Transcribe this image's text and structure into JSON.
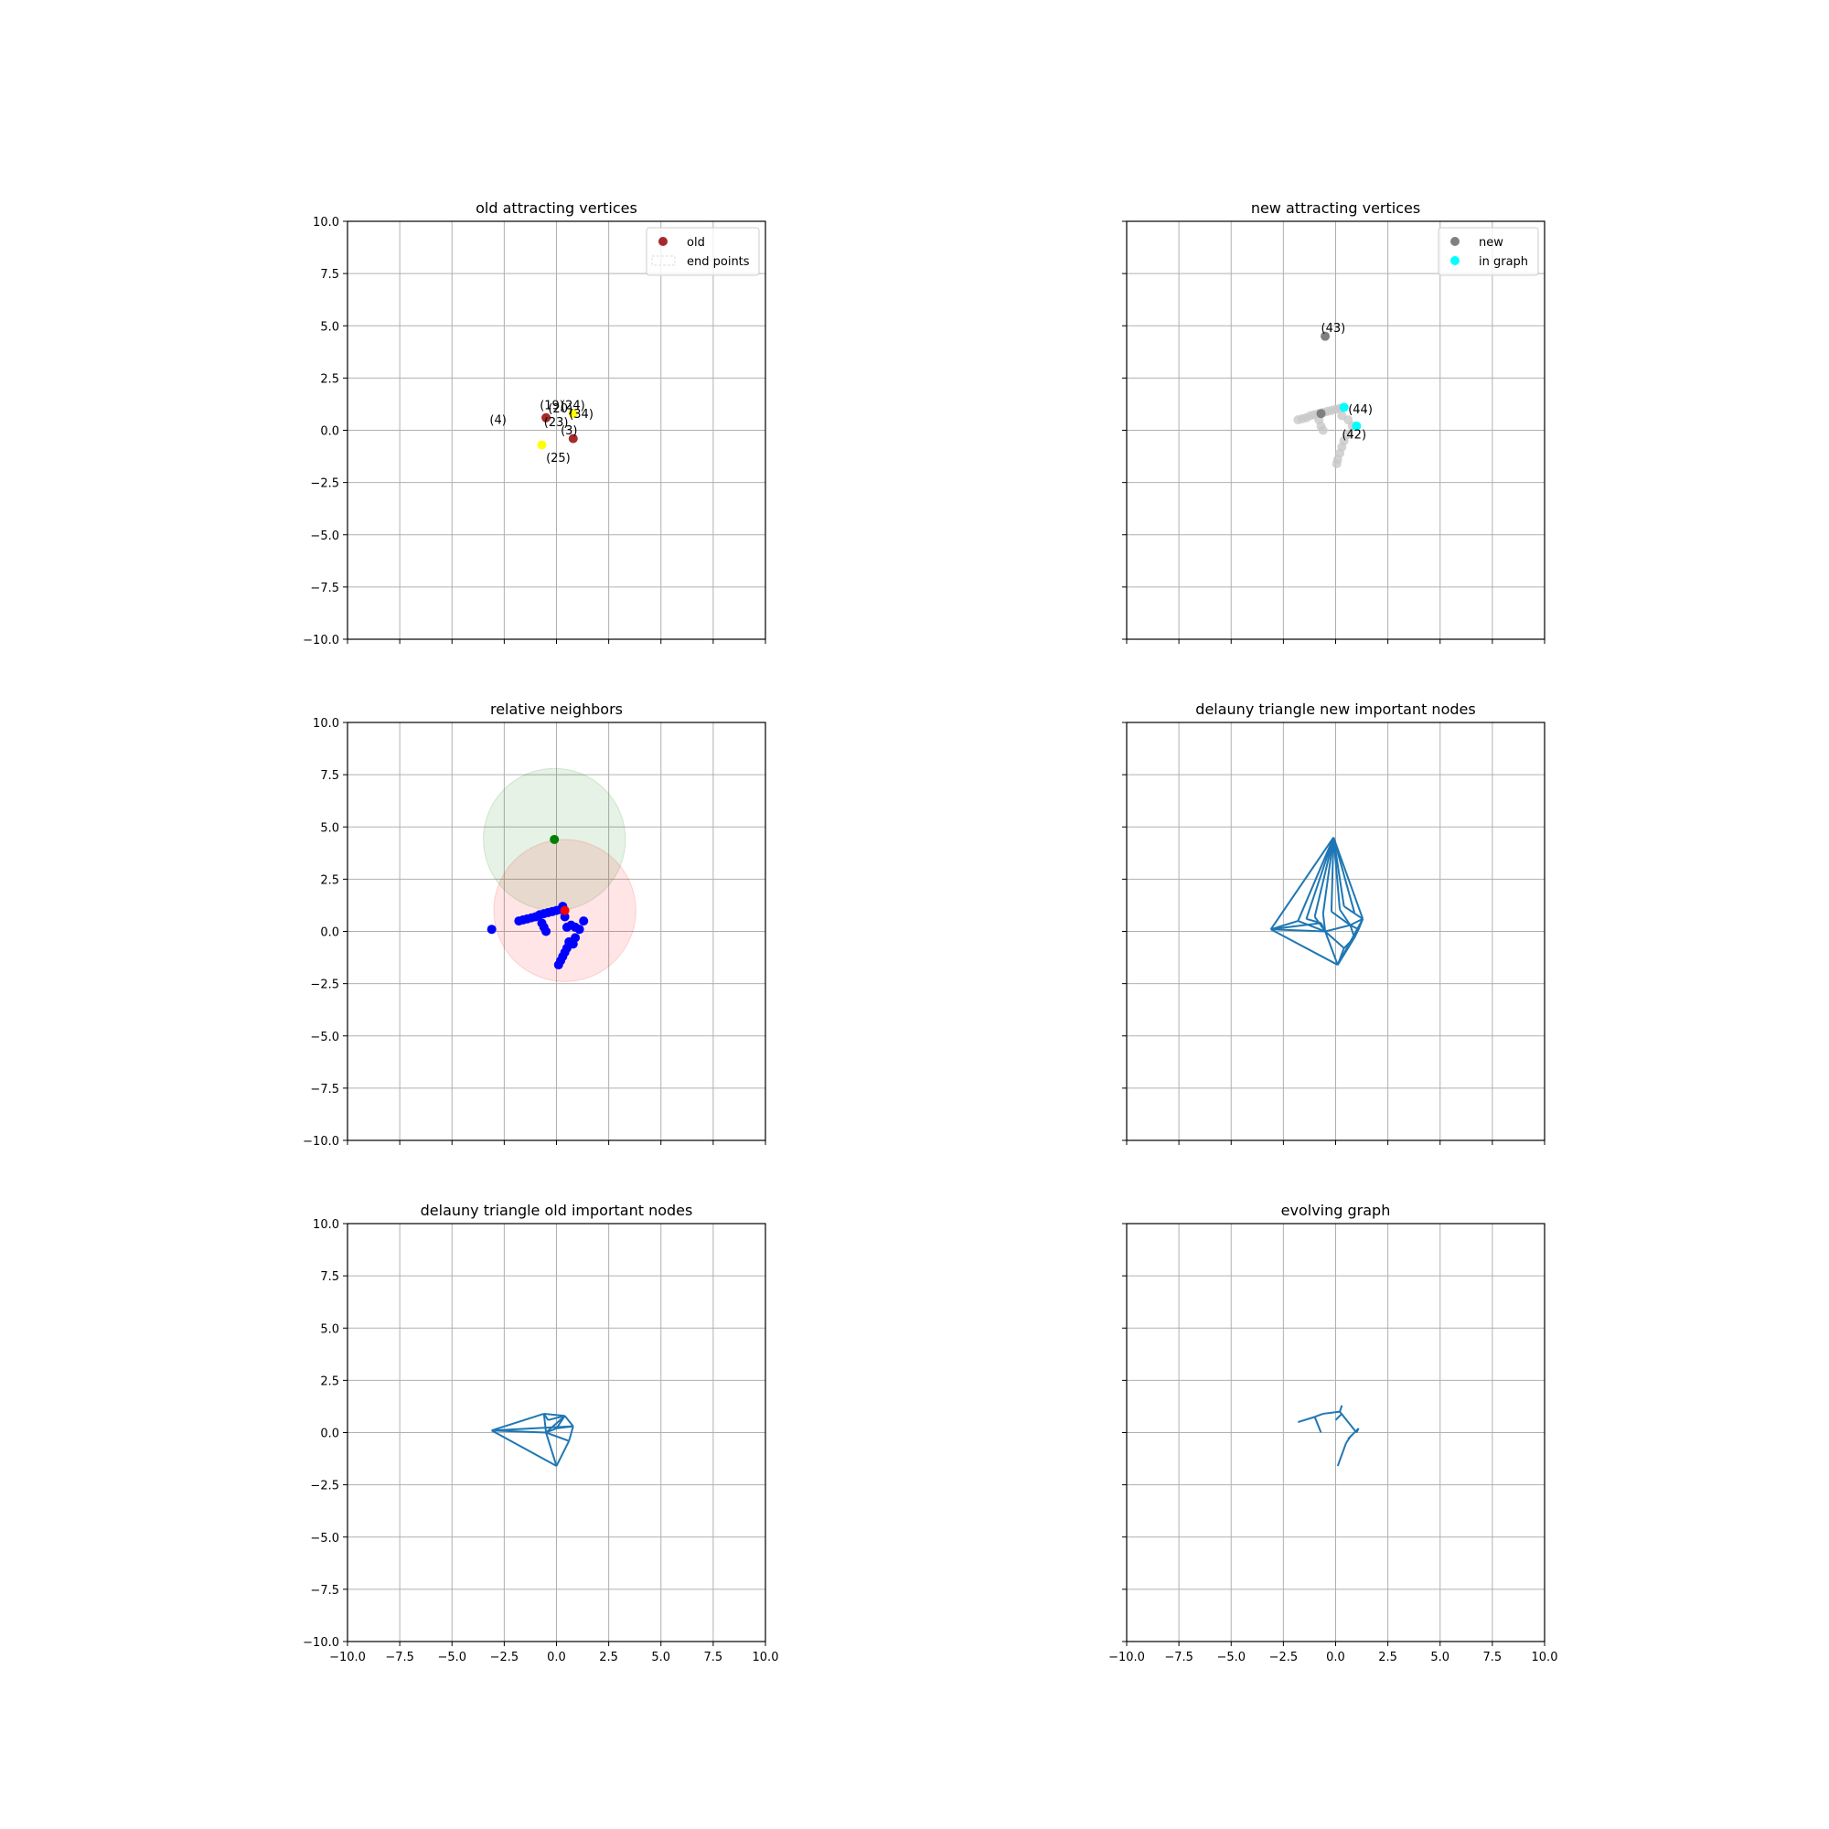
{
  "figure": {
    "background": "#ffffff"
  },
  "chart_data": [
    {
      "id": "old_attracting",
      "type": "scatter",
      "title": "old attracting vertices",
      "xlim": [
        -10,
        10
      ],
      "ylim": [
        -10,
        10
      ],
      "xticks": [
        "−10.0",
        "−7.5",
        "−5.0",
        "−2.5",
        "0.0",
        "2.5",
        "5.0",
        "7.5",
        "10.0"
      ],
      "yticks": [
        "−10.0",
        "−7.5",
        "−5.0",
        "−2.5",
        "0.0",
        "2.5",
        "5.0",
        "7.5",
        "10.0"
      ],
      "show_xticklabels": false,
      "grid": true,
      "legend": {
        "position": "top-right",
        "entries": [
          {
            "label": "old",
            "kind": "dot",
            "color": "#a52a2a"
          },
          {
            "label": "end points",
            "kind": "patch",
            "color": "#dcdcdc"
          }
        ]
      },
      "series": [
        {
          "name": "old",
          "color": "#a52a2a",
          "points": [
            [
              -0.5,
              0.6
            ],
            [
              0.8,
              -0.4
            ]
          ]
        },
        {
          "name": "end points",
          "color": "#ffff00",
          "points": [
            [
              -0.7,
              -0.7
            ],
            [
              0.8,
              0.8
            ]
          ]
        }
      ],
      "annotations": [
        {
          "text": "(4)",
          "x": -3.2,
          "y": 0.3
        },
        {
          "text": "(19)",
          "x": -0.8,
          "y": 1.0
        },
        {
          "text": "(24)",
          "x": 0.2,
          "y": 1.0
        },
        {
          "text": "(20)",
          "x": -0.4,
          "y": 0.85
        },
        {
          "text": "(34)",
          "x": 0.6,
          "y": 0.6
        },
        {
          "text": "(23)",
          "x": -0.6,
          "y": 0.2
        },
        {
          "text": "(3)",
          "x": 0.2,
          "y": -0.2
        },
        {
          "text": "(25)",
          "x": -0.5,
          "y": -1.5
        }
      ]
    },
    {
      "id": "new_attracting",
      "type": "scatter",
      "title": "new attracting vertices",
      "xlim": [
        -10,
        10
      ],
      "ylim": [
        -10,
        10
      ],
      "xticks": [
        "−10.0",
        "−7.5",
        "−5.0",
        "−2.5",
        "0.0",
        "2.5",
        "5.0",
        "7.5",
        "10.0"
      ],
      "yticks": [
        "−10.0",
        "−7.5",
        "−5.0",
        "−2.5",
        "0.0",
        "2.5",
        "5.0",
        "7.5",
        "10.0"
      ],
      "show_xticklabels": false,
      "show_yticklabels": false,
      "grid": true,
      "legend": {
        "position": "top-right",
        "entries": [
          {
            "label": "new",
            "kind": "dot",
            "color": "#808080"
          },
          {
            "label": "in graph",
            "kind": "dot",
            "color": "#00ffff"
          }
        ]
      },
      "series": [
        {
          "name": "trail",
          "color": "#c8c8c8",
          "points": [
            [
              -1.8,
              0.5
            ],
            [
              -1.6,
              0.55
            ],
            [
              -1.4,
              0.6
            ],
            [
              -1.2,
              0.7
            ],
            [
              -1.0,
              0.75
            ],
            [
              -0.8,
              0.8
            ],
            [
              -0.6,
              0.85
            ],
            [
              -0.4,
              0.9
            ],
            [
              -0.2,
              0.95
            ],
            [
              0.0,
              1.0
            ],
            [
              0.2,
              1.05
            ],
            [
              0.3,
              0.7
            ],
            [
              0.6,
              0.5
            ],
            [
              0.8,
              0.2
            ],
            [
              0.6,
              -0.2
            ],
            [
              0.4,
              -0.5
            ],
            [
              0.3,
              -0.8
            ],
            [
              0.2,
              -1.1
            ],
            [
              0.1,
              -1.4
            ],
            [
              0.05,
              -1.6
            ],
            [
              -0.8,
              0.5
            ],
            [
              -0.7,
              0.2
            ],
            [
              -0.6,
              0.0
            ]
          ]
        },
        {
          "name": "new",
          "color": "#808080",
          "points": [
            [
              -0.5,
              4.5
            ],
            [
              -0.7,
              0.8
            ]
          ]
        },
        {
          "name": "in graph",
          "color": "#00ffff",
          "points": [
            [
              0.4,
              1.1
            ],
            [
              1.0,
              0.2
            ]
          ]
        }
      ],
      "annotations": [
        {
          "text": "(43)",
          "x": -0.7,
          "y": 4.7
        },
        {
          "text": "(44)",
          "x": 0.6,
          "y": 0.8
        },
        {
          "text": "(42)",
          "x": 0.3,
          "y": -0.4
        }
      ]
    },
    {
      "id": "relative_neighbors",
      "type": "scatter",
      "title": "relative neighbors",
      "xlim": [
        -10,
        10
      ],
      "ylim": [
        -10,
        10
      ],
      "xticks": [
        "−10.0",
        "−7.5",
        "−5.0",
        "−2.5",
        "0.0",
        "2.5",
        "5.0",
        "7.5",
        "10.0"
      ],
      "yticks": [
        "−10.0",
        "−7.5",
        "−5.0",
        "−2.5",
        "0.0",
        "2.5",
        "5.0",
        "7.5",
        "10.0"
      ],
      "show_xticklabels": false,
      "grid": true,
      "circles": [
        {
          "cx": -0.1,
          "cy": 4.4,
          "r": 3.4,
          "color": "#008000",
          "opacity": 0.1
        },
        {
          "cx": 0.4,
          "cy": 1.0,
          "r": 3.4,
          "color": "#ff0000",
          "opacity": 0.1
        }
      ],
      "series": [
        {
          "name": "nodes",
          "color": "#0000ff",
          "points": [
            [
              -3.1,
              0.1
            ],
            [
              -1.8,
              0.5
            ],
            [
              -1.6,
              0.55
            ],
            [
              -1.4,
              0.6
            ],
            [
              -1.2,
              0.65
            ],
            [
              -1.0,
              0.7
            ],
            [
              -0.8,
              0.8
            ],
            [
              -0.6,
              0.85
            ],
            [
              -0.4,
              0.9
            ],
            [
              -0.2,
              0.95
            ],
            [
              0.0,
              1.0
            ],
            [
              0.2,
              1.05
            ],
            [
              0.3,
              1.2
            ],
            [
              0.4,
              0.7
            ],
            [
              0.7,
              0.3
            ],
            [
              0.9,
              0.2
            ],
            [
              1.1,
              0.1
            ],
            [
              1.3,
              0.5
            ],
            [
              0.9,
              -0.3
            ],
            [
              0.8,
              -0.6
            ],
            [
              0.6,
              -0.5
            ],
            [
              0.5,
              -0.8
            ],
            [
              0.4,
              -1.0
            ],
            [
              0.3,
              -1.2
            ],
            [
              0.2,
              -1.4
            ],
            [
              0.1,
              -1.6
            ],
            [
              -0.7,
              0.4
            ],
            [
              -0.6,
              0.2
            ],
            [
              -0.5,
              0.0
            ],
            [
              0.5,
              0.2
            ]
          ]
        },
        {
          "name": "green",
          "color": "#008000",
          "points": [
            [
              -0.1,
              4.4
            ]
          ]
        },
        {
          "name": "red",
          "color": "#ff0000",
          "points": [
            [
              0.4,
              1.0
            ]
          ]
        }
      ]
    },
    {
      "id": "delauny_new",
      "type": "line",
      "title": "delauny triangle new important nodes",
      "xlim": [
        -10,
        10
      ],
      "ylim": [
        -10,
        10
      ],
      "xticks": [
        "−10.0",
        "−7.5",
        "−5.0",
        "−2.5",
        "0.0",
        "2.5",
        "5.0",
        "7.5",
        "10.0"
      ],
      "yticks": [
        "−10.0",
        "−7.5",
        "−5.0",
        "−2.5",
        "0.0",
        "2.5",
        "5.0",
        "7.5",
        "10.0"
      ],
      "show_xticklabels": false,
      "show_yticklabels": false,
      "grid": true,
      "color": "#1f77b4",
      "segments": [
        [
          [
            -0.1,
            4.5
          ],
          [
            -3.1,
            0.1
          ]
        ],
        [
          [
            -3.1,
            0.1
          ],
          [
            0.1,
            -1.6
          ]
        ],
        [
          [
            0.1,
            -1.6
          ],
          [
            1.3,
            0.6
          ]
        ],
        [
          [
            1.3,
            0.6
          ],
          [
            -0.1,
            4.5
          ]
        ],
        [
          [
            -0.1,
            4.5
          ],
          [
            -1.8,
            0.5
          ]
        ],
        [
          [
            -0.1,
            4.5
          ],
          [
            -1.4,
            0.6
          ]
        ],
        [
          [
            -0.1,
            4.5
          ],
          [
            -1.0,
            0.7
          ]
        ],
        [
          [
            -0.1,
            4.5
          ],
          [
            -0.6,
            0.85
          ]
        ],
        [
          [
            -0.1,
            4.5
          ],
          [
            -0.2,
            0.95
          ]
        ],
        [
          [
            -0.1,
            4.5
          ],
          [
            0.2,
            1.05
          ]
        ],
        [
          [
            -0.1,
            4.5
          ],
          [
            0.4,
            1.2
          ]
        ],
        [
          [
            -0.1,
            4.5
          ],
          [
            0.9,
            0.9
          ]
        ],
        [
          [
            -3.1,
            0.1
          ],
          [
            -1.8,
            0.5
          ]
        ],
        [
          [
            -3.1,
            0.1
          ],
          [
            -0.7,
            0.4
          ]
        ],
        [
          [
            -3.1,
            0.1
          ],
          [
            -0.5,
            0.0
          ]
        ],
        [
          [
            -1.8,
            0.5
          ],
          [
            -0.5,
            0.0
          ]
        ],
        [
          [
            -1.4,
            0.6
          ],
          [
            -0.7,
            0.4
          ]
        ],
        [
          [
            -1.0,
            0.7
          ],
          [
            -0.5,
            0.0
          ]
        ],
        [
          [
            -0.5,
            0.0
          ],
          [
            0.1,
            -1.6
          ]
        ],
        [
          [
            -0.5,
            0.0
          ],
          [
            0.4,
            -0.8
          ]
        ],
        [
          [
            -0.5,
            0.0
          ],
          [
            0.7,
            0.3
          ]
        ],
        [
          [
            0.2,
            1.05
          ],
          [
            0.7,
            0.3
          ]
        ],
        [
          [
            0.4,
            1.2
          ],
          [
            1.3,
            0.6
          ]
        ],
        [
          [
            0.7,
            0.3
          ],
          [
            1.3,
            0.6
          ]
        ],
        [
          [
            0.7,
            0.3
          ],
          [
            0.9,
            -0.3
          ]
        ],
        [
          [
            0.9,
            -0.3
          ],
          [
            1.3,
            0.6
          ]
        ],
        [
          [
            0.9,
            -0.3
          ],
          [
            0.1,
            -1.6
          ]
        ],
        [
          [
            0.4,
            -0.8
          ],
          [
            0.9,
            -0.3
          ]
        ],
        [
          [
            0.4,
            -0.8
          ],
          [
            0.1,
            -1.6
          ]
        ],
        [
          [
            -0.2,
            0.95
          ],
          [
            0.7,
            0.3
          ]
        ],
        [
          [
            1.1,
            0.1
          ],
          [
            0.7,
            0.3
          ]
        ],
        [
          [
            1.1,
            0.1
          ],
          [
            0.9,
            -0.3
          ]
        ],
        [
          [
            1.1,
            0.1
          ],
          [
            1.3,
            0.6
          ]
        ],
        [
          [
            -0.7,
            0.4
          ],
          [
            -0.5,
            0.0
          ]
        ],
        [
          [
            -0.6,
            0.85
          ],
          [
            -0.5,
            0.0
          ]
        ]
      ]
    },
    {
      "id": "delauny_old",
      "type": "line",
      "title": "delauny triangle old important nodes",
      "xlim": [
        -10,
        10
      ],
      "ylim": [
        -10,
        10
      ],
      "xticks": [
        "−10.0",
        "−7.5",
        "−5.0",
        "−2.5",
        "0.0",
        "2.5",
        "5.0",
        "7.5",
        "10.0"
      ],
      "yticks": [
        "−10.0",
        "−7.5",
        "−5.0",
        "−2.5",
        "0.0",
        "2.5",
        "5.0",
        "7.5",
        "10.0"
      ],
      "show_xticklabels": true,
      "grid": true,
      "color": "#1f77b4",
      "segments": [
        [
          [
            -3.1,
            0.1
          ],
          [
            -0.6,
            0.9
          ]
        ],
        [
          [
            -0.6,
            0.9
          ],
          [
            0.4,
            0.8
          ]
        ],
        [
          [
            0.4,
            0.8
          ],
          [
            0.8,
            0.3
          ]
        ],
        [
          [
            0.8,
            0.3
          ],
          [
            0.6,
            -0.4
          ]
        ],
        [
          [
            0.6,
            -0.4
          ],
          [
            0.0,
            -1.6
          ]
        ],
        [
          [
            0.0,
            -1.6
          ],
          [
            -3.1,
            0.1
          ]
        ],
        [
          [
            -3.1,
            0.1
          ],
          [
            -0.5,
            0.0
          ]
        ],
        [
          [
            -3.1,
            0.1
          ],
          [
            0.8,
            0.3
          ]
        ],
        [
          [
            -0.6,
            0.9
          ],
          [
            -0.5,
            0.0
          ]
        ],
        [
          [
            -0.5,
            0.0
          ],
          [
            0.0,
            -1.6
          ]
        ],
        [
          [
            -0.5,
            0.0
          ],
          [
            0.6,
            -0.4
          ]
        ],
        [
          [
            -0.5,
            0.0
          ],
          [
            0.4,
            0.8
          ]
        ],
        [
          [
            -0.6,
            0.9
          ],
          [
            -0.4,
            0.6
          ]
        ],
        [
          [
            -0.4,
            0.6
          ],
          [
            0.4,
            0.8
          ]
        ],
        [
          [
            0.4,
            0.8
          ],
          [
            0.0,
            0.2
          ]
        ],
        [
          [
            0.0,
            0.2
          ],
          [
            0.8,
            0.3
          ]
        ],
        [
          [
            0.0,
            0.2
          ],
          [
            -0.5,
            0.0
          ]
        ]
      ]
    },
    {
      "id": "evolving_graph",
      "type": "line",
      "title": "evolving graph",
      "xlim": [
        -10,
        10
      ],
      "ylim": [
        -10,
        10
      ],
      "xticks": [
        "−10.0",
        "−7.5",
        "−5.0",
        "−2.5",
        "0.0",
        "2.5",
        "5.0",
        "7.5",
        "10.0"
      ],
      "yticks": [
        "−10.0",
        "−7.5",
        "−5.0",
        "−2.5",
        "0.0",
        "2.5",
        "5.0",
        "7.5",
        "10.0"
      ],
      "show_xticklabels": true,
      "show_yticklabels": false,
      "grid": true,
      "color": "#1f77b4",
      "segments": [
        [
          [
            -1.8,
            0.5
          ],
          [
            -1.0,
            0.75
          ]
        ],
        [
          [
            -1.0,
            0.75
          ],
          [
            -0.6,
            0.9
          ]
        ],
        [
          [
            -0.6,
            0.9
          ],
          [
            0.2,
            1.0
          ]
        ],
        [
          [
            0.2,
            1.0
          ],
          [
            0.3,
            1.3
          ]
        ],
        [
          [
            0.2,
            1.0
          ],
          [
            1.0,
            0.0
          ]
        ],
        [
          [
            1.0,
            0.0
          ],
          [
            1.1,
            0.2
          ]
        ],
        [
          [
            1.1,
            0.2
          ],
          [
            0.7,
            -0.2
          ]
        ],
        [
          [
            0.7,
            -0.2
          ],
          [
            0.5,
            -0.5
          ]
        ],
        [
          [
            0.5,
            -0.5
          ],
          [
            0.1,
            -1.6
          ]
        ],
        [
          [
            -1.0,
            0.75
          ],
          [
            -0.7,
            0.0
          ]
        ],
        [
          [
            0.0,
            0.6
          ],
          [
            0.3,
            0.9
          ]
        ],
        [
          [
            0.6,
            -0.3
          ],
          [
            0.8,
            -0.1
          ]
        ]
      ]
    }
  ]
}
